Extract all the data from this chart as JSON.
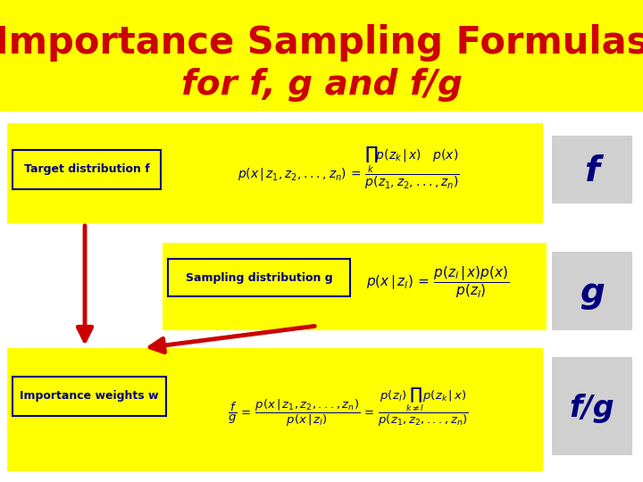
{
  "bg_yellow": "#FFFF00",
  "bg_white": "#FFFFFF",
  "dark_blue": "#000080",
  "red_color": "#CC0000",
  "gray_box": "#D0D0D0",
  "title1": "Importance Sampling Formulas",
  "title2": "for f, g and f/g",
  "box1_label": "Target distribution f",
  "box2_label": "Sampling distribution g",
  "box3_label": "Importance weights w",
  "label_f": "f",
  "label_g": "g",
  "label_fg": "f/g"
}
